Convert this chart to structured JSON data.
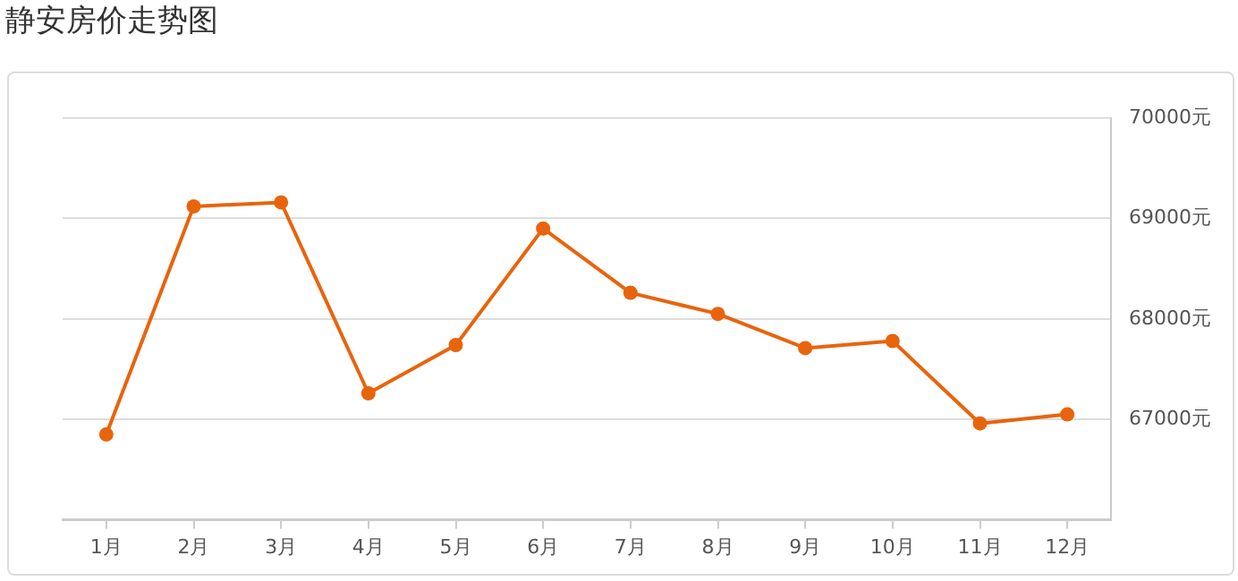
{
  "chart_data": {
    "type": "line",
    "title": "静安房价走势图",
    "categories": [
      "1月",
      "2月",
      "3月",
      "4月",
      "5月",
      "6月",
      "7月",
      "8月",
      "9月",
      "10月",
      "11月",
      "12月"
    ],
    "series": [
      {
        "color": "#e8640c",
        "values": [
          66850,
          69120,
          69160,
          67260,
          67740,
          68900,
          68260,
          68050,
          67710,
          67780,
          66960,
          67050
        ]
      }
    ],
    "ylim": [
      66000,
      70000
    ],
    "yticks": [
      {
        "value": 67000,
        "label": "67000元"
      },
      {
        "value": 68000,
        "label": "68000元"
      },
      {
        "value": 69000,
        "label": "69000元"
      },
      {
        "value": 70000,
        "label": "70000元"
      }
    ],
    "grid": "y",
    "marker": "circle",
    "line_style": "solid"
  }
}
